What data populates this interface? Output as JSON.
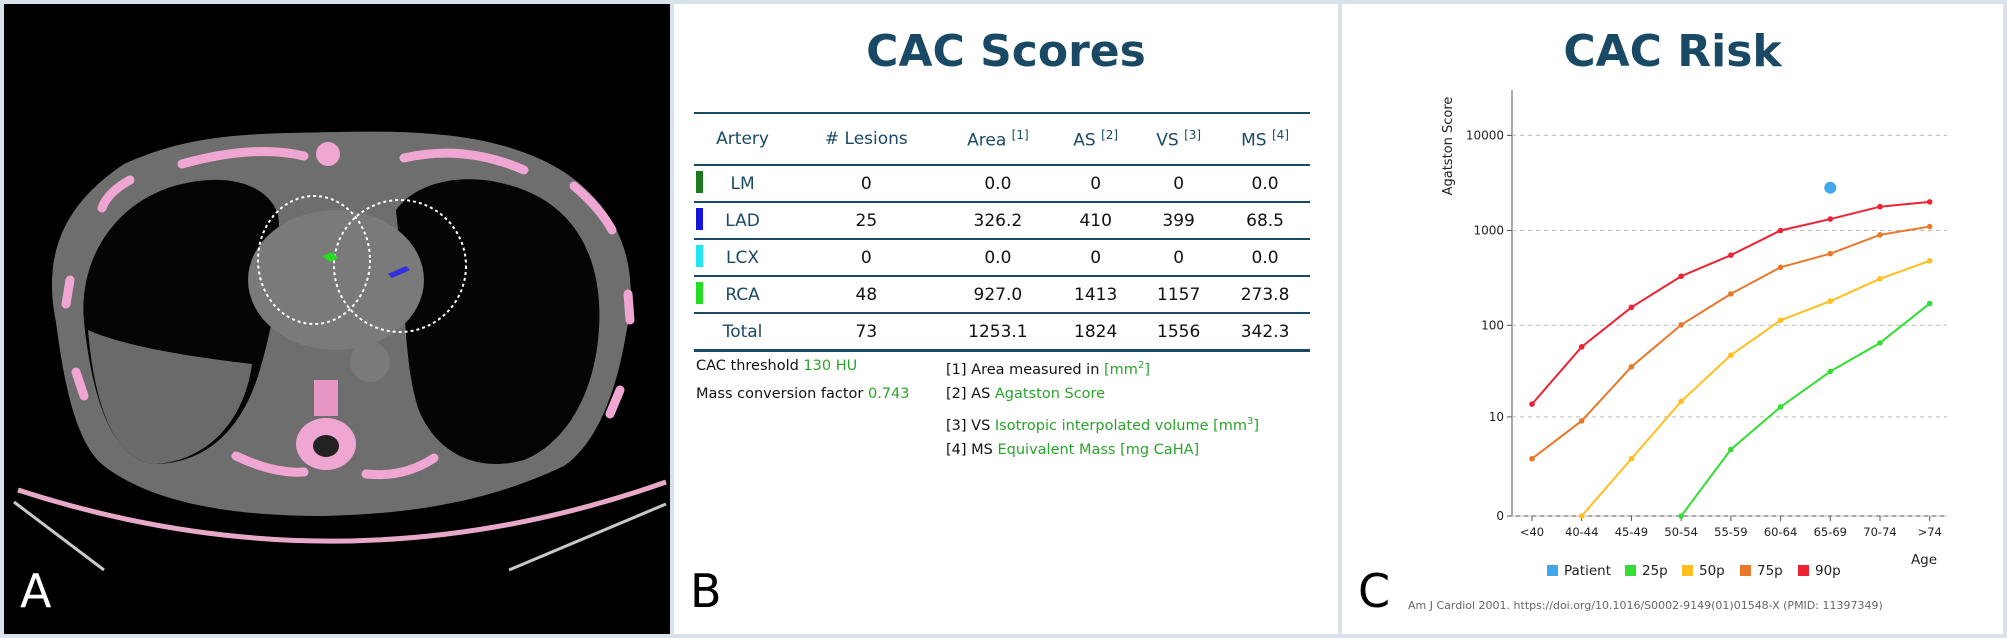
{
  "panel_a": {
    "letter": "A"
  },
  "panel_b": {
    "letter": "B",
    "title": "CAC Scores",
    "headers": {
      "artery": "Artery",
      "lesions": "# Lesions",
      "area": "Area",
      "area_ref": "[1]",
      "as": "AS",
      "as_ref": "[2]",
      "vs": "VS",
      "vs_ref": "[3]",
      "ms": "MS",
      "ms_ref": "[4]"
    },
    "rows": [
      {
        "artery": "LM",
        "color": "#1f7a1f",
        "lesions": "0",
        "area": "0.0",
        "as": "0",
        "vs": "0",
        "ms": "0.0"
      },
      {
        "artery": "LAD",
        "color": "#1616d8",
        "lesions": "25",
        "area": "326.2",
        "as": "410",
        "vs": "399",
        "ms": "68.5"
      },
      {
        "artery": "LCX",
        "color": "#22e6f0",
        "lesions": "0",
        "area": "0.0",
        "as": "0",
        "vs": "0",
        "ms": "0.0"
      },
      {
        "artery": "RCA",
        "color": "#22dd22",
        "lesions": "48",
        "area": "927.0",
        "as": "1413",
        "vs": "1157",
        "ms": "273.8"
      }
    ],
    "total": {
      "label": "Total",
      "lesions": "73",
      "area": "1253.1",
      "as": "1824",
      "vs": "1556",
      "ms": "342.3"
    },
    "settings": {
      "threshold_label": "CAC threshold",
      "threshold_value": "130 HU",
      "mass_label": "Mass conversion factor",
      "mass_value": "0.743"
    },
    "notes": {
      "n1_label": "[1] Area measured in",
      "n1_value": "[mm",
      "n2_label": "[2] AS",
      "n2_value": "Agatston Score",
      "n3_label": "[3] VS",
      "n3_value": "Isotropic interpolated volume [mm",
      "n4_label": "[4] MS",
      "n4_value": "Equivalent Mass [mg CaHA]"
    }
  },
  "panel_c": {
    "letter": "C",
    "title": "CAC Risk",
    "citation": "Am J Cardiol 2001.  https://doi.org/10.1016/S0002-9149(01)01548-X (PMID: 11397349)",
    "chart_data": {
      "type": "line",
      "ylabel": "Agatston Score",
      "xlabel": "Age",
      "y_scale": "log(score+1)",
      "y_ticks": [
        "0",
        "10",
        "100",
        "1000",
        "10000"
      ],
      "categories": [
        "<40",
        "40-44",
        "45-49",
        "50-54",
        "55-59",
        "60-64",
        "65-69",
        "70-74",
        ">74"
      ],
      "grid": "horizontal dashed",
      "legend_position": "bottom",
      "series": [
        {
          "name": "25p",
          "color": "#33dd33",
          "values": [
            null,
            null,
            null,
            0,
            4,
            13,
            32,
            65,
            170
          ]
        },
        {
          "name": "50p",
          "color": "#ffbf1f",
          "values": [
            null,
            0,
            3,
            15,
            48,
            113,
            180,
            310,
            480
          ]
        },
        {
          "name": "75p",
          "color": "#e9782a",
          "values": [
            3,
            9,
            36,
            101,
            215,
            410,
            570,
            900,
            1100
          ]
        },
        {
          "name": "90p",
          "color": "#ee2233",
          "values": [
            14,
            59,
            155,
            330,
            550,
            1000,
            1320,
            1780,
            2000
          ]
        }
      ],
      "patient": {
        "name": "Patient",
        "color": "#41a7ea",
        "category": "65-69",
        "value": 1824
      }
    }
  }
}
